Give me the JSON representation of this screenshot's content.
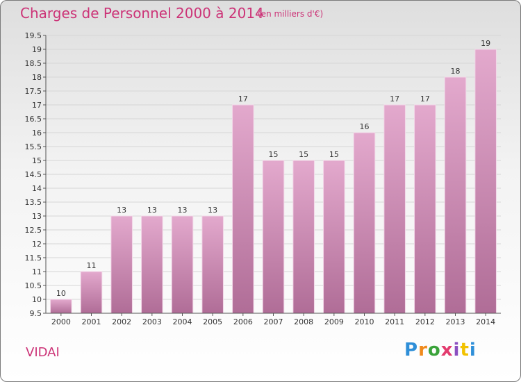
{
  "header": {
    "title": "Charges de Personnel 2000 à 2014",
    "subtitle": "(en milliers d'€)"
  },
  "footer": {
    "commune": "VIDAI",
    "logo_letters": [
      "P",
      "r",
      "o",
      "x",
      "i",
      "t",
      "i"
    ],
    "logo_colors": [
      "#2f8fd8",
      "#f08a1c",
      "#3aa33a",
      "#e33b6e",
      "#8b4fc0",
      "#f2c200",
      "#2f8fd8"
    ]
  },
  "chart_data": {
    "type": "bar",
    "title": "Charges de Personnel 2000 à 2014",
    "subtitle": "(en milliers d'€)",
    "categories": [
      "2000",
      "2001",
      "2002",
      "2003",
      "2004",
      "2005",
      "2006",
      "2007",
      "2008",
      "2009",
      "2010",
      "2011",
      "2012",
      "2013",
      "2014"
    ],
    "values": [
      10,
      11,
      13,
      13,
      13,
      13,
      17,
      15,
      15,
      15,
      16,
      17,
      17,
      18,
      19
    ],
    "data_labels": [
      "10",
      "11",
      "13",
      "13",
      "13",
      "13",
      "17",
      "15",
      "15",
      "15",
      "16",
      "17",
      "17",
      "18",
      "19"
    ],
    "ylim": [
      9.5,
      19.5
    ],
    "yticks": [
      9.5,
      10,
      10.5,
      11,
      11.5,
      12,
      12.5,
      13,
      13.5,
      14,
      14.5,
      15,
      15.5,
      16,
      16.5,
      17,
      17.5,
      18,
      18.5,
      19,
      19.5
    ],
    "ytick_labels": [
      "9.5",
      "10",
      "10.5",
      "11",
      "11.5",
      "12",
      "12.5",
      "13",
      "13.5",
      "14",
      "14.5",
      "15",
      "15.5",
      "16",
      "16.5",
      "17",
      "17.5",
      "18",
      "18.5",
      "19",
      "19.5"
    ],
    "grid": true,
    "bar_color": "#d994bf"
  }
}
